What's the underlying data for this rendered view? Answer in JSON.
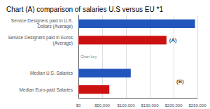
{
  "chart_data": {
    "type": "bar",
    "orientation": "horizontal",
    "title": "Chart (A) comparison of salaries U.S versus EU *1",
    "categories": [
      "Service Designers paid in U.S.\nDollars (Average)",
      "Service Designers paid in Euros\n(Average)",
      null,
      "Median U.S. Salaries",
      "Median Euro-paid Salaries"
    ],
    "values": [
      245000,
      185000,
      0,
      110000,
      65000
    ],
    "colors": [
      "#2255bb",
      "#cc1111",
      "#ffffff",
      "#2255bb",
      "#cc1111"
    ],
    "xlim": [
      0,
      250000
    ],
    "xticks": [
      {
        "value": 0,
        "label": "$0"
      },
      {
        "value": 50000,
        "label": "$50,000"
      },
      {
        "value": 100000,
        "label": "$100,000"
      },
      {
        "value": 150000,
        "label": "$150,000"
      },
      {
        "value": 200000,
        "label": "$200,000"
      },
      {
        "value": 250000,
        "label": "$250,000"
      }
    ],
    "grid": true,
    "annotations": [
      "(A)",
      "(B)",
      "Chart key"
    ]
  }
}
